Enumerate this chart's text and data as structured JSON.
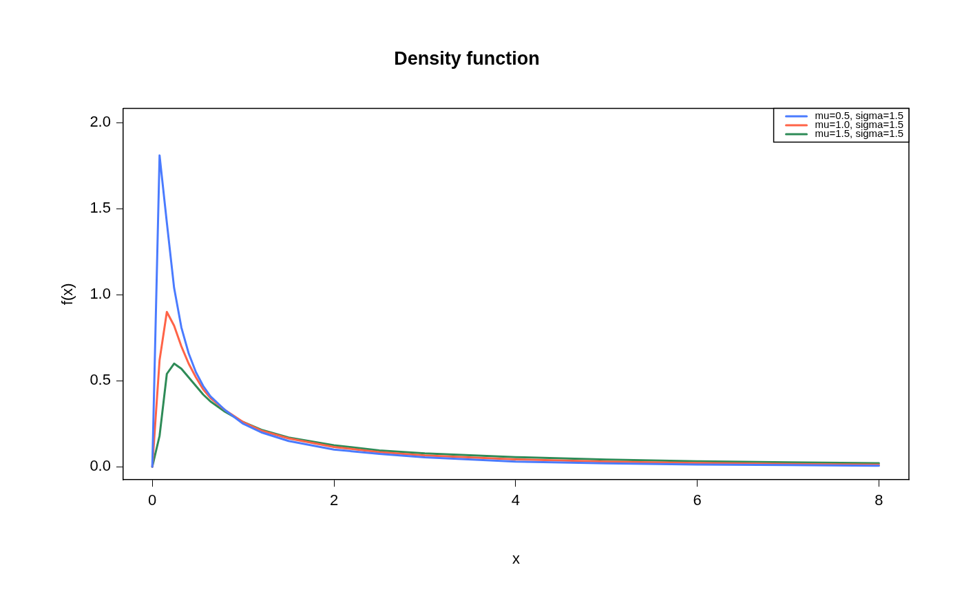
{
  "chart_data": {
    "type": "line",
    "title": "Density function",
    "xlabel": "x",
    "ylabel": "f(x)",
    "xlim": [
      -0.32,
      8.33
    ],
    "ylim": [
      -0.076,
      2.084
    ],
    "xticks": [
      0,
      2,
      4,
      6,
      8
    ],
    "yticks": [
      {
        "value": 0,
        "label": "0.0"
      },
      0.5,
      {
        "value": 1,
        "label": "1.0"
      },
      1.5,
      {
        "value": 2,
        "label": "2.0"
      }
    ],
    "grid": false,
    "legend": "top right",
    "marker": "none",
    "line_style": "solid",
    "series": [
      {
        "name": "mu=0.5, sigma=1.5",
        "color": "#4a7bff",
        "x": [
          0,
          0.08,
          0.16,
          0.24,
          0.32,
          0.4,
          0.48,
          0.56,
          0.64,
          0.8,
          1.0,
          1.2,
          1.5,
          2,
          2.5,
          3,
          4,
          5,
          6,
          7,
          8
        ],
        "values": [
          0,
          1.81,
          1.42,
          1.04,
          0.81,
          0.66,
          0.55,
          0.47,
          0.41,
          0.33,
          0.25,
          0.2,
          0.15,
          0.1,
          0.075,
          0.055,
          0.03,
          0.02,
          0.013,
          0.01,
          0.006
        ]
      },
      {
        "name": "mu=1.0, sigma=1.5",
        "color": "#ff6347",
        "x": [
          0,
          0.08,
          0.16,
          0.24,
          0.32,
          0.4,
          0.48,
          0.56,
          0.64,
          0.8,
          1.0,
          1.2,
          1.5,
          2,
          2.5,
          3,
          4,
          5,
          6,
          7,
          8
        ],
        "values": [
          0,
          0.62,
          0.9,
          0.82,
          0.7,
          0.6,
          0.52,
          0.45,
          0.4,
          0.33,
          0.26,
          0.21,
          0.165,
          0.115,
          0.085,
          0.066,
          0.043,
          0.03,
          0.022,
          0.016,
          0.012
        ]
      },
      {
        "name": "mu=1.5, sigma=1.5",
        "color": "#2e8b57",
        "x": [
          0,
          0.08,
          0.16,
          0.24,
          0.32,
          0.4,
          0.48,
          0.56,
          0.64,
          0.8,
          1.0,
          1.2,
          1.5,
          2,
          2.5,
          3,
          4,
          5,
          6,
          7,
          8
        ],
        "values": [
          0,
          0.18,
          0.54,
          0.6,
          0.57,
          0.52,
          0.47,
          0.42,
          0.38,
          0.32,
          0.26,
          0.215,
          0.17,
          0.125,
          0.095,
          0.078,
          0.056,
          0.042,
          0.032,
          0.026,
          0.021
        ]
      }
    ]
  }
}
